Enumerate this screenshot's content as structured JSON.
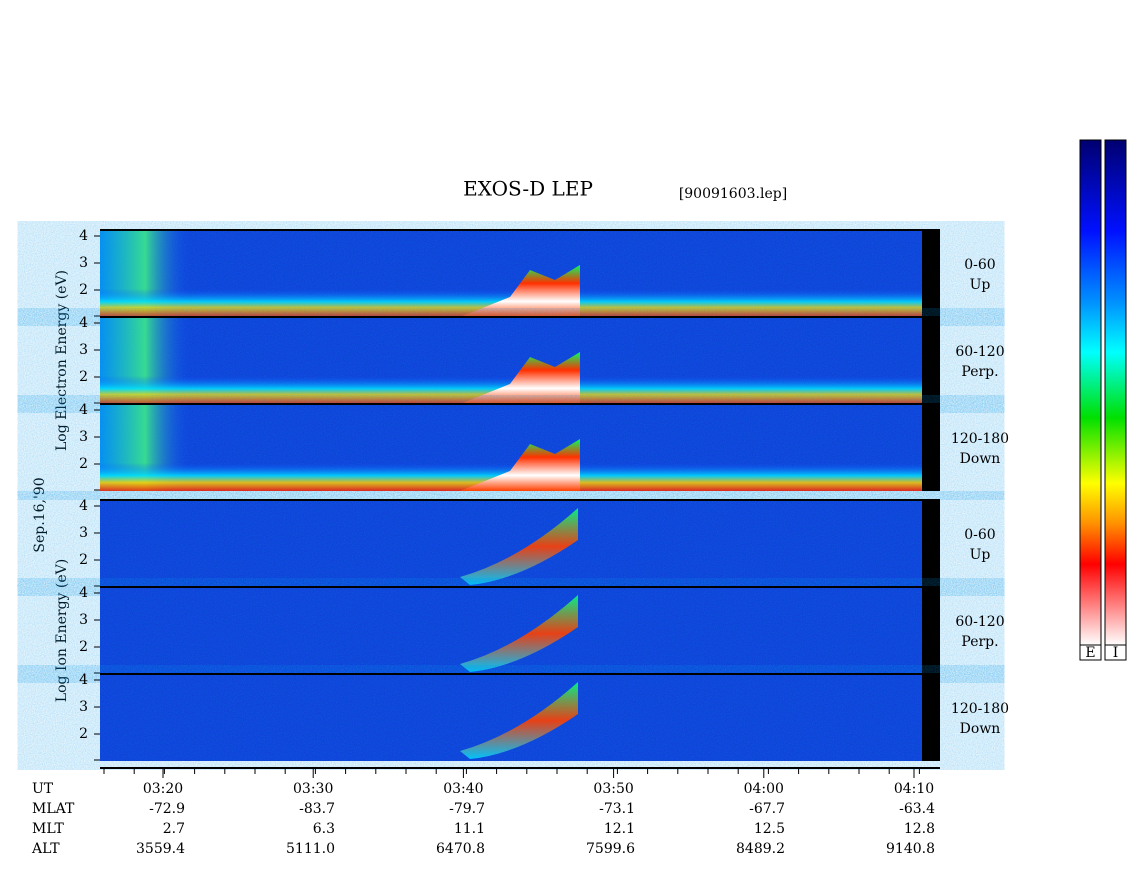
{
  "header": {
    "title": "EXOS-D LEP",
    "file": "[90091603.lep]",
    "date": "Sep.16,'90"
  },
  "electron": {
    "axis_title": "Log Electron Energy (eV)",
    "panels": [
      {
        "range": "0-60",
        "direction": "Up"
      },
      {
        "range": "60-120",
        "direction": "Perp."
      },
      {
        "range": "120-180",
        "direction": "Down"
      }
    ]
  },
  "ion": {
    "axis_title": "Log Ion Energy (eV)",
    "panels": [
      {
        "range": "0-60",
        "direction": "Up"
      },
      {
        "range": "60-120",
        "direction": "Perp."
      },
      {
        "range": "120-180",
        "direction": "Down"
      }
    ]
  },
  "y_ticks": [
    "4",
    "3",
    "2"
  ],
  "colorbars": [
    "E",
    "I"
  ],
  "table": {
    "rows": [
      {
        "label": "UT",
        "values": [
          "03:20",
          "03:30",
          "03:40",
          "03:50",
          "04:00",
          "04:10"
        ]
      },
      {
        "label": "MLAT",
        "values": [
          "-72.9",
          "-83.7",
          "-79.7",
          "-73.1",
          "-67.7",
          "-63.4"
        ]
      },
      {
        "label": "MLT",
        "values": [
          "2.7",
          "6.3",
          "11.1",
          "12.1",
          "12.5",
          "12.8"
        ]
      },
      {
        "label": "ALT",
        "values": [
          "3559.4",
          "5111.0",
          "6470.8",
          "7599.6",
          "8489.2",
          "9140.8"
        ]
      }
    ]
  }
}
